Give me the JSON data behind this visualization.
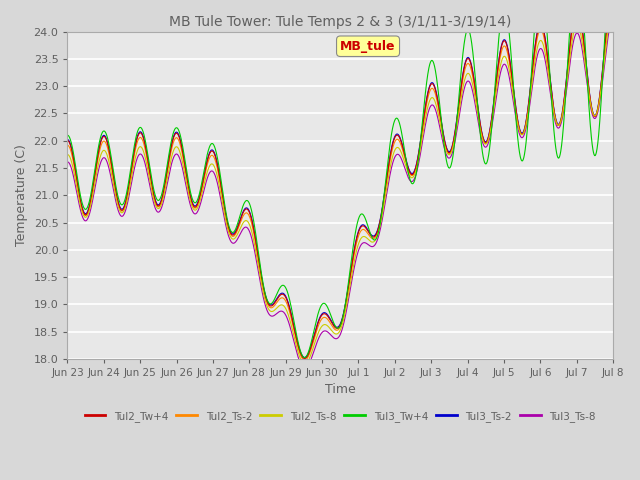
{
  "title": "MB Tule Tower: Tule Temps 2 & 3 (3/1/11-3/19/14)",
  "xlabel": "Time",
  "ylabel": "Temperature (C)",
  "ylim": [
    18.0,
    24.0
  ],
  "yticks": [
    18.0,
    18.5,
    19.0,
    19.5,
    20.0,
    20.5,
    21.0,
    21.5,
    22.0,
    22.5,
    23.0,
    23.5,
    24.0
  ],
  "series_colors": [
    "#cc0000",
    "#ff8800",
    "#cccc00",
    "#00cc00",
    "#0000cc",
    "#aa00aa"
  ],
  "series_labels": [
    "Tul2_Tw+4",
    "Tul2_Ts-2",
    "Tul2_Ts-8",
    "Tul3_Tw+4",
    "Tul3_Ts-2",
    "Tul3_Ts-8"
  ],
  "annotation_text": "MB_tule",
  "annotation_color": "#cc0000",
  "annotation_bg": "#ffff99",
  "background_color": "#d8d8d8",
  "plot_bg": "#e8e8e8",
  "title_color": "#606060",
  "tick_label_color": "#606060",
  "grid_color": "#ffffff",
  "x_labels": [
    "Jun 23",
    "Jun 24",
    "Jun 25",
    "Jun 26",
    "Jun 27",
    "Jun 28",
    "Jun 29",
    "Jun 30",
    "Jul 1",
    "Jul 2",
    "Jul 3",
    "Jul 4",
    "Jul 5",
    "Jul 6",
    "Jul 7",
    "Jul 8"
  ]
}
